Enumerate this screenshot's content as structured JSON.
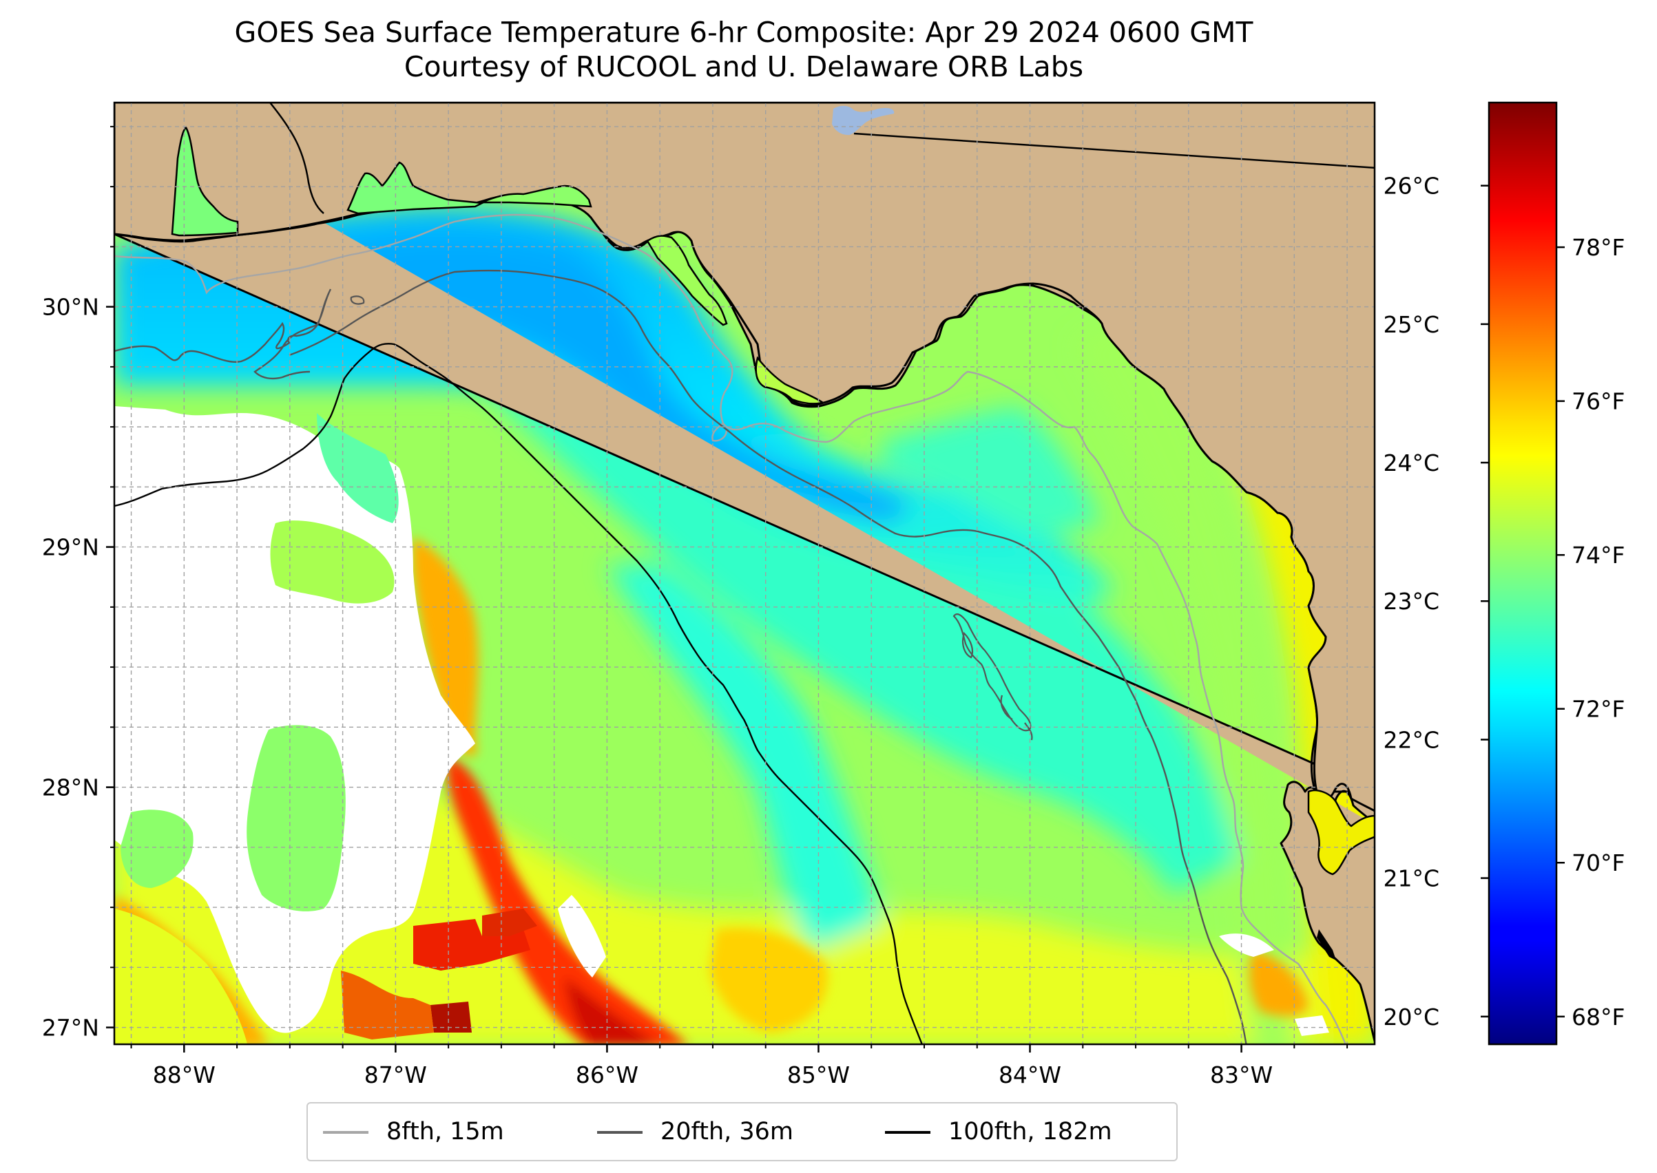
{
  "title": {
    "line1": "GOES Sea Surface Temperature 6-hr Composite: Apr 29 2024 0600 GMT",
    "line2": "Courtesy of RUCOOL and U. Delaware ORB Labs"
  },
  "map": {
    "lon_range": [
      -88.33,
      -82.37
    ],
    "lat_range": [
      26.93,
      30.85
    ],
    "lon_labels": [
      "88°W",
      "87°W",
      "86°W",
      "85°W",
      "84°W",
      "83°W"
    ],
    "lon_values": [
      -88,
      -87,
      -86,
      -85,
      -84,
      -83
    ],
    "lat_labels": [
      "27°N",
      "28°N",
      "29°N",
      "30°N"
    ],
    "lat_values": [
      27,
      28,
      29,
      30
    ],
    "gridlines": true,
    "colors": {
      "land": "#d2b48c",
      "coastline": "#000000",
      "no_data": "#ffffff",
      "lake": "#9db9e0",
      "grid": "#b0b0b0"
    }
  },
  "colorbar": {
    "colormap": "jet",
    "range_c": [
      19.8,
      26.6
    ],
    "celsius_labels": [
      "20°C",
      "21°C",
      "22°C",
      "23°C",
      "24°C",
      "25°C",
      "26°C"
    ],
    "celsius_values": [
      20,
      21,
      22,
      23,
      24,
      25,
      26
    ],
    "fahrenheit_labels": [
      "68°F",
      "70°F",
      "72°F",
      "74°F",
      "76°F",
      "78°F"
    ],
    "fahrenheit_values": [
      68,
      70,
      72,
      74,
      76,
      78
    ]
  },
  "legend": {
    "placement": "bottom-center",
    "items": [
      {
        "label": "8fth, 15m",
        "color": "#a6a6a6"
      },
      {
        "label": "20fth, 36m",
        "color": "#555555"
      },
      {
        "label": "100fth, 182m",
        "color": "#000000"
      }
    ]
  }
}
